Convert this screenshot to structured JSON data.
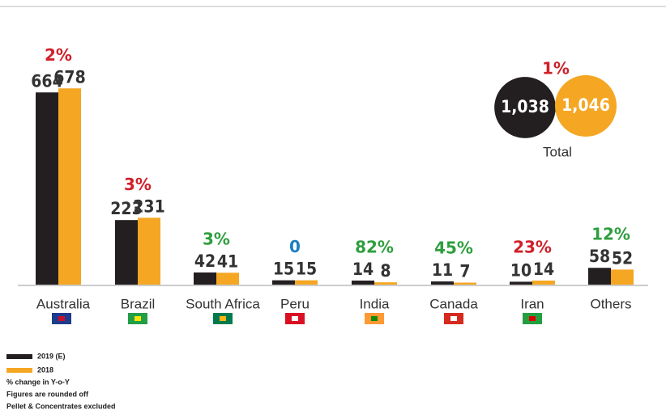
{
  "chart_data": {
    "type": "bar",
    "categories": [
      "Australia",
      "Brazil",
      "South Africa",
      "Peru",
      "India",
      "Canada",
      "Iran",
      "Others"
    ],
    "series": [
      {
        "name": "2019 (E)",
        "color": "#231f20",
        "values": [
          664,
          223,
          42,
          15,
          14,
          11,
          10,
          58
        ]
      },
      {
        "name": "2018",
        "color": "#f5a623",
        "values": [
          678,
          231,
          41,
          15,
          8,
          7,
          14,
          52
        ]
      }
    ],
    "change_labels": [
      "2%",
      "3%",
      "3%",
      "0",
      "82%",
      "45%",
      "23%",
      "12%"
    ],
    "change_colors": [
      "#d0202a",
      "#d0202a",
      "#2e9e3e",
      "#1a7fc1",
      "#2e9e3e",
      "#2e9e3e",
      "#d0202a",
      "#2e9e3e"
    ],
    "total": {
      "label": "Total",
      "change_label": "1%",
      "change_color": "#d0202a",
      "values": [
        1038,
        1046
      ],
      "value_labels": [
        "1,038",
        "1,046"
      ]
    },
    "notes": [
      "% change in Y-o-Y",
      "Figures are rounded off",
      "Pellet & Concentrates excluded"
    ]
  }
}
